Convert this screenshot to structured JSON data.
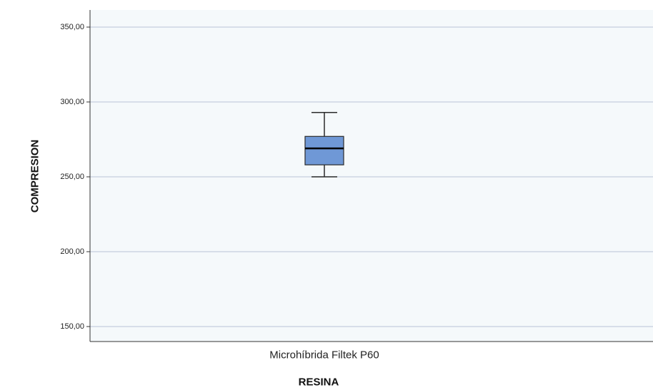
{
  "chart_data": {
    "type": "boxplot",
    "xlabel": "RESINA",
    "ylabel": "COMPRESION",
    "ylim": [
      139,
      360
    ],
    "y_ticks": [
      350,
      300,
      250,
      200,
      150
    ],
    "y_tick_labels": [
      "350,00",
      "300,00",
      "250,00",
      "200,00",
      "150,00"
    ],
    "grid": true,
    "categories": [
      "Microhíbrida Filtek P60"
    ],
    "boxes": [
      {
        "category": "Microhíbrida Filtek P60",
        "whisker_low": 250,
        "q1": 258,
        "median": 269,
        "q3": 277,
        "whisker_high": 293
      }
    ],
    "colors": {
      "box_fill": "#6f98d6",
      "box_stroke": "#2b2b2b",
      "grid": "#c5cede",
      "axis": "#333333",
      "background": "#f5f9fb"
    }
  }
}
